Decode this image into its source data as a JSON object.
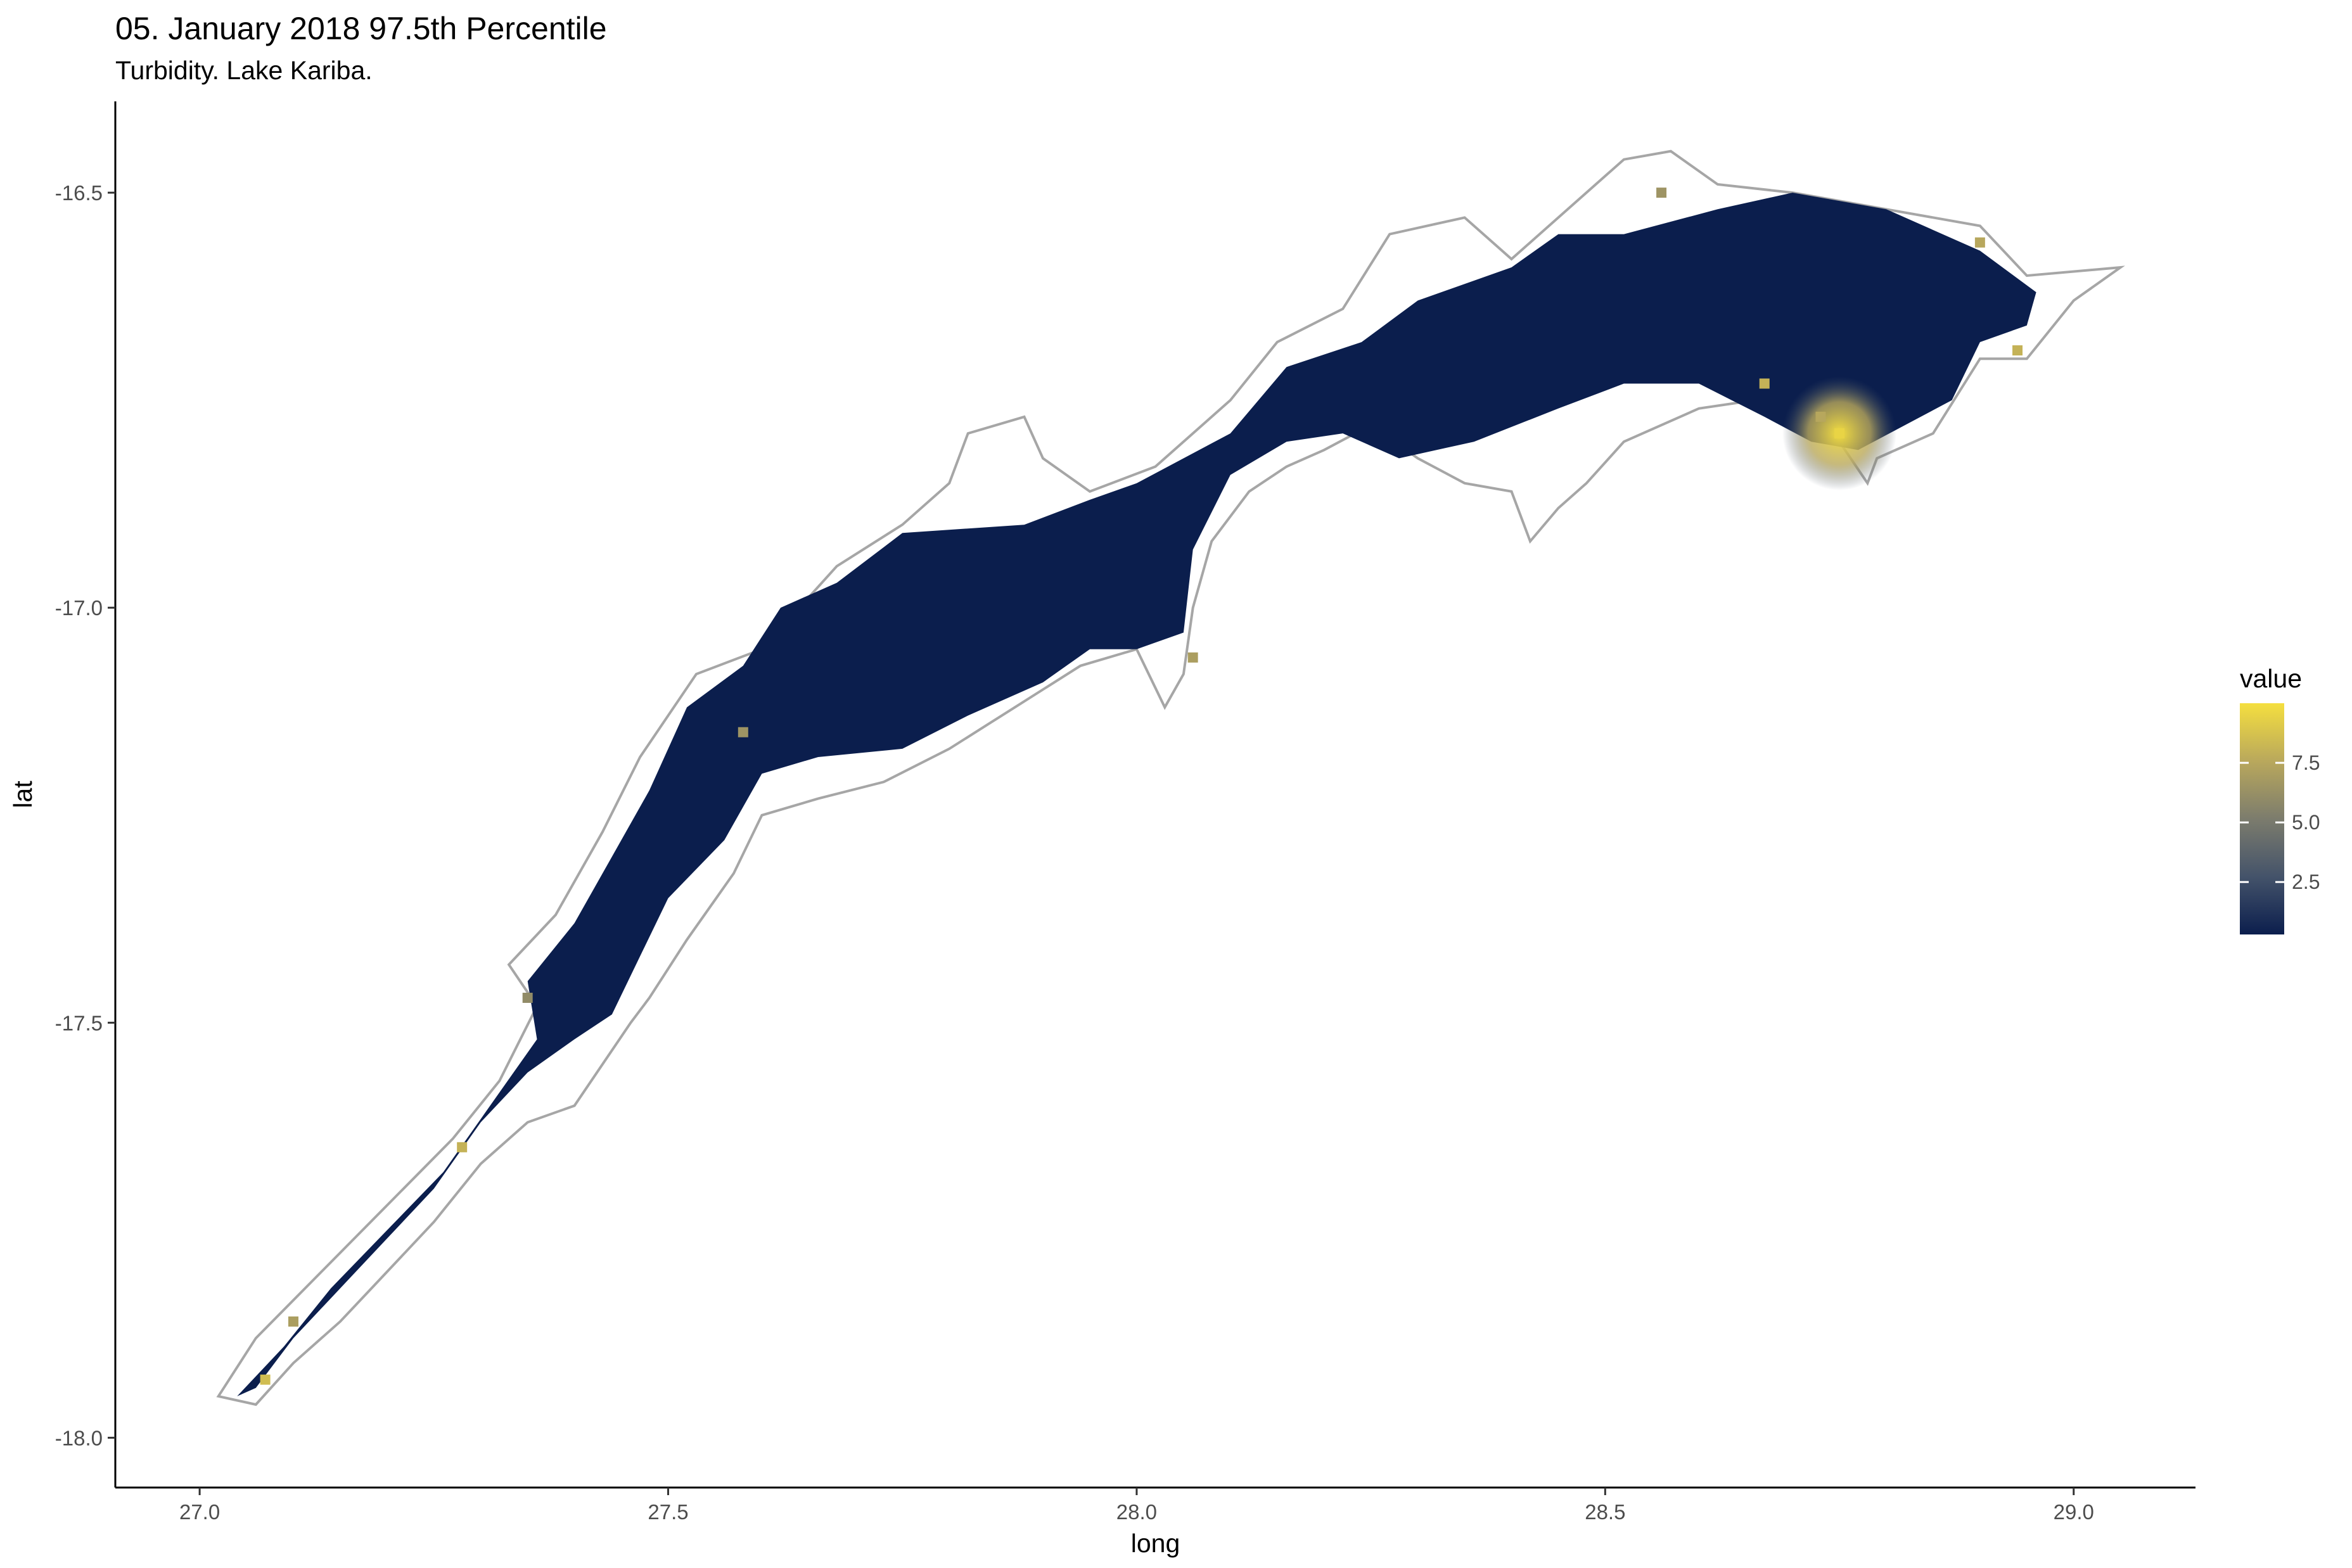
{
  "chart_data": {
    "type": "heatmap",
    "title": "05. January 2018 97.5th Percentile",
    "subtitle": "Turbidity. Lake Kariba.",
    "xlabel": "long",
    "ylabel": "lat",
    "xlim": [
      26.91,
      29.13
    ],
    "ylim": [
      -18.06,
      -16.39
    ],
    "x_ticks": [
      27.0,
      27.5,
      28.0,
      28.5,
      29.0
    ],
    "x_tick_labels": [
      "27.0",
      "27.5",
      "28.0",
      "28.5",
      "29.0"
    ],
    "y_ticks": [
      -16.5,
      -17.0,
      -17.5,
      -18.0
    ],
    "y_tick_labels": [
      "-16.5",
      "-17.0",
      "-17.5",
      "-18.0"
    ],
    "grid": false,
    "legend": {
      "title": "value",
      "placement": "right",
      "range": [
        0.3,
        10.0
      ],
      "ticks": [
        2.5,
        5.0,
        7.5
      ],
      "tick_labels": [
        "2.5",
        "5.0",
        "7.5"
      ],
      "colors": [
        "#0b1e4d",
        "#44536a",
        "#7c7c6d",
        "#b9a85c",
        "#f5df3f"
      ]
    },
    "lake_outline_color": "#a6a6a6",
    "lake_outline": [
      [
        27.02,
        -17.95
      ],
      [
        27.06,
        -17.88
      ],
      [
        27.13,
        -17.8
      ],
      [
        27.2,
        -17.72
      ],
      [
        27.27,
        -17.64
      ],
      [
        27.32,
        -17.57
      ],
      [
        27.36,
        -17.48
      ],
      [
        27.33,
        -17.43
      ],
      [
        27.38,
        -17.37
      ],
      [
        27.43,
        -17.27
      ],
      [
        27.47,
        -17.18
      ],
      [
        27.53,
        -17.08
      ],
      [
        27.6,
        -17.05
      ],
      [
        27.68,
        -16.95
      ],
      [
        27.75,
        -16.9
      ],
      [
        27.8,
        -16.85
      ],
      [
        27.82,
        -16.79
      ],
      [
        27.88,
        -16.77
      ],
      [
        27.9,
        -16.82
      ],
      [
        27.95,
        -16.86
      ],
      [
        28.02,
        -16.83
      ],
      [
        28.1,
        -16.75
      ],
      [
        28.15,
        -16.68
      ],
      [
        28.22,
        -16.64
      ],
      [
        28.27,
        -16.55
      ],
      [
        28.35,
        -16.53
      ],
      [
        28.4,
        -16.58
      ],
      [
        28.45,
        -16.53
      ],
      [
        28.52,
        -16.46
      ],
      [
        28.57,
        -16.45
      ],
      [
        28.62,
        -16.49
      ],
      [
        28.7,
        -16.5
      ],
      [
        28.8,
        -16.52
      ],
      [
        28.9,
        -16.54
      ],
      [
        28.95,
        -16.6
      ],
      [
        29.05,
        -16.59
      ],
      [
        29.0,
        -16.63
      ],
      [
        28.95,
        -16.7
      ],
      [
        28.9,
        -16.7
      ],
      [
        28.85,
        -16.79
      ],
      [
        28.79,
        -16.82
      ],
      [
        28.78,
        -16.85
      ],
      [
        28.75,
        -16.8
      ],
      [
        28.72,
        -16.78
      ],
      [
        28.66,
        -16.75
      ],
      [
        28.6,
        -16.76
      ],
      [
        28.52,
        -16.8
      ],
      [
        28.48,
        -16.85
      ],
      [
        28.45,
        -16.88
      ],
      [
        28.42,
        -16.92
      ],
      [
        28.4,
        -16.86
      ],
      [
        28.35,
        -16.85
      ],
      [
        28.3,
        -16.82
      ],
      [
        28.25,
        -16.78
      ],
      [
        28.2,
        -16.81
      ],
      [
        28.16,
        -16.83
      ],
      [
        28.12,
        -16.86
      ],
      [
        28.08,
        -16.92
      ],
      [
        28.06,
        -17.0
      ],
      [
        28.05,
        -17.08
      ],
      [
        28.03,
        -17.12
      ],
      [
        28.0,
        -17.05
      ],
      [
        27.94,
        -17.07
      ],
      [
        27.87,
        -17.12
      ],
      [
        27.8,
        -17.17
      ],
      [
        27.73,
        -17.21
      ],
      [
        27.66,
        -17.23
      ],
      [
        27.6,
        -17.25
      ],
      [
        27.57,
        -17.32
      ],
      [
        27.52,
        -17.4
      ],
      [
        27.48,
        -17.47
      ],
      [
        27.46,
        -17.5
      ],
      [
        27.43,
        -17.55
      ],
      [
        27.4,
        -17.6
      ],
      [
        27.35,
        -17.62
      ],
      [
        27.3,
        -17.67
      ],
      [
        27.25,
        -17.74
      ],
      [
        27.2,
        -17.8
      ],
      [
        27.15,
        -17.86
      ],
      [
        27.1,
        -17.91
      ],
      [
        27.06,
        -17.96
      ]
    ],
    "lake_fill": [
      [
        27.04,
        -17.95
      ],
      [
        27.09,
        -17.89
      ],
      [
        27.14,
        -17.82
      ],
      [
        27.2,
        -17.75
      ],
      [
        27.26,
        -17.68
      ],
      [
        27.31,
        -17.6
      ],
      [
        27.36,
        -17.52
      ],
      [
        27.35,
        -17.45
      ],
      [
        27.4,
        -17.38
      ],
      [
        27.44,
        -17.3
      ],
      [
        27.48,
        -17.22
      ],
      [
        27.52,
        -17.12
      ],
      [
        27.58,
        -17.07
      ],
      [
        27.62,
        -17.0
      ],
      [
        27.68,
        -16.97
      ],
      [
        27.75,
        -16.91
      ],
      [
        27.88,
        -16.9
      ],
      [
        27.95,
        -16.87
      ],
      [
        28.0,
        -16.85
      ],
      [
        28.1,
        -16.79
      ],
      [
        28.16,
        -16.71
      ],
      [
        28.24,
        -16.68
      ],
      [
        28.3,
        -16.63
      ],
      [
        28.4,
        -16.59
      ],
      [
        28.45,
        -16.55
      ],
      [
        28.52,
        -16.55
      ],
      [
        28.62,
        -16.52
      ],
      [
        28.7,
        -16.5
      ],
      [
        28.8,
        -16.52
      ],
      [
        28.9,
        -16.57
      ],
      [
        28.96,
        -16.62
      ],
      [
        28.95,
        -16.66
      ],
      [
        28.9,
        -16.68
      ],
      [
        28.87,
        -16.75
      ],
      [
        28.82,
        -16.78
      ],
      [
        28.77,
        -16.81
      ],
      [
        28.72,
        -16.8
      ],
      [
        28.67,
        -16.77
      ],
      [
        28.6,
        -16.73
      ],
      [
        28.52,
        -16.73
      ],
      [
        28.45,
        -16.76
      ],
      [
        28.36,
        -16.8
      ],
      [
        28.28,
        -16.82
      ],
      [
        28.22,
        -16.79
      ],
      [
        28.16,
        -16.8
      ],
      [
        28.1,
        -16.84
      ],
      [
        28.06,
        -16.93
      ],
      [
        28.05,
        -17.03
      ],
      [
        28.0,
        -17.05
      ],
      [
        27.95,
        -17.05
      ],
      [
        27.9,
        -17.09
      ],
      [
        27.82,
        -17.13
      ],
      [
        27.75,
        -17.17
      ],
      [
        27.66,
        -17.18
      ],
      [
        27.6,
        -17.2
      ],
      [
        27.56,
        -17.28
      ],
      [
        27.5,
        -17.35
      ],
      [
        27.47,
        -17.42
      ],
      [
        27.44,
        -17.49
      ],
      [
        27.4,
        -17.52
      ],
      [
        27.35,
        -17.56
      ],
      [
        27.3,
        -17.62
      ],
      [
        27.25,
        -17.7
      ],
      [
        27.2,
        -17.76
      ],
      [
        27.15,
        -17.82
      ],
      [
        27.1,
        -17.88
      ],
      [
        27.06,
        -17.94
      ]
    ],
    "hotspots": [
      {
        "x": 28.75,
        "y": -16.79,
        "value": 9.5
      },
      {
        "x": 28.73,
        "y": -16.77,
        "value": 7.5
      },
      {
        "x": 28.67,
        "y": -16.73,
        "value": 8.0
      },
      {
        "x": 28.06,
        "y": -17.06,
        "value": 7.0
      },
      {
        "x": 27.58,
        "y": -17.15,
        "value": 6.5
      },
      {
        "x": 27.28,
        "y": -17.65,
        "value": 8.0
      },
      {
        "x": 27.35,
        "y": -17.47,
        "value": 6.0
      },
      {
        "x": 27.07,
        "y": -17.93,
        "value": 8.5
      },
      {
        "x": 27.1,
        "y": -17.86,
        "value": 7.0
      },
      {
        "x": 28.9,
        "y": -16.56,
        "value": 7.5
      },
      {
        "x": 28.94,
        "y": -16.69,
        "value": 8.0
      },
      {
        "x": 28.56,
        "y": -16.5,
        "value": 6.5
      }
    ]
  }
}
